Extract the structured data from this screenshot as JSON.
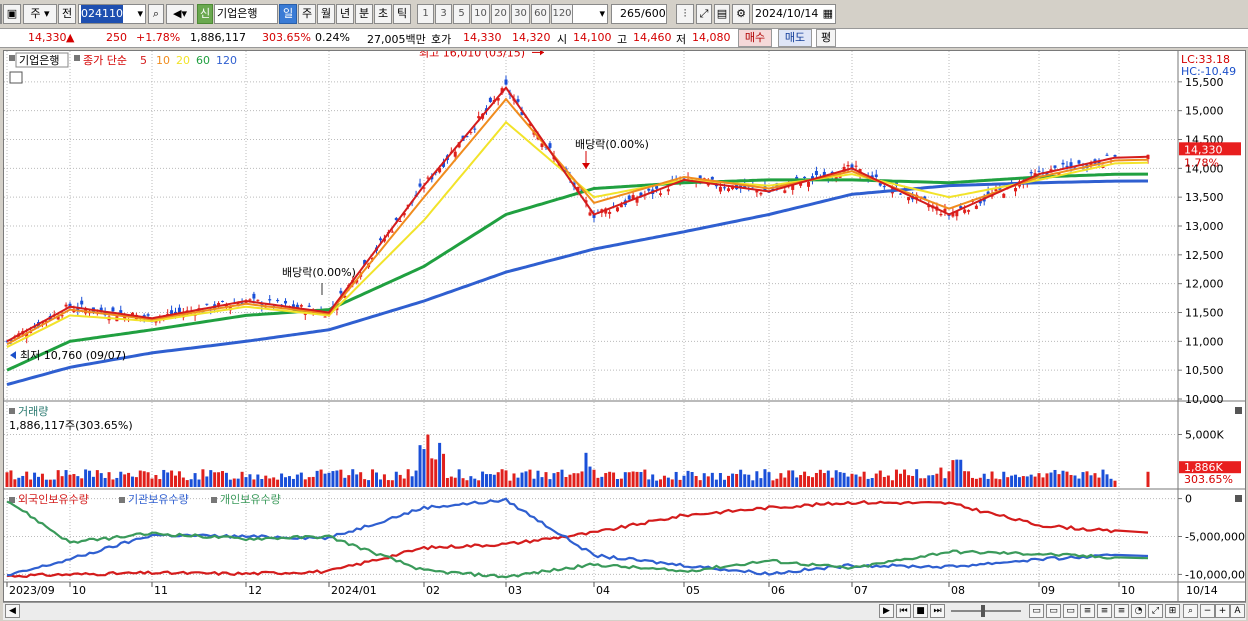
{
  "toolbar": {
    "market": "주",
    "prev": "전",
    "code": "024110",
    "name": "기업은행",
    "credit_badge": "신",
    "periods": [
      "일",
      "주",
      "월",
      "년",
      "분",
      "초",
      "틱"
    ],
    "period_selected": "일",
    "intervals": [
      "1",
      "3",
      "5",
      "10",
      "20",
      "30",
      "60",
      "120"
    ],
    "count_value": "265",
    "count_total": "/600",
    "date": "2024/10/14"
  },
  "quote": {
    "price": "14,330",
    "change_arrow": "▲",
    "change": "250",
    "change_pct": "+1.78%",
    "volume": "1,886,117",
    "volume_ratio": "303.65%",
    "turnover_pct": "0.24%",
    "amount": "27,005백만",
    "bid_label": "호가",
    "ask_price": "14,330",
    "bid_price": "14,320",
    "open_label": "시",
    "open": "14,100",
    "high_label": "고",
    "high": "14,460",
    "low_label": "저",
    "low": "14,080",
    "buy_button": "매수",
    "sell_button": "매도",
    "avg_button": "평"
  },
  "price_panel": {
    "stock_tag": "기업은행",
    "ma_label": "종가 단순",
    "ma_periods": [
      "5",
      "10",
      "20",
      "60",
      "120"
    ],
    "ma_colors": [
      "#d41c1c",
      "#f08c1e",
      "#f2e32a",
      "#20a040",
      "#2f5fd0"
    ],
    "lc_label": "LC:33.18",
    "hc_label": "HC:-10.49",
    "high_annotation": "최고 16,010 (03/15)",
    "low_annotation": "최저 10,760 (09/07)",
    "dividend_annotation_1": "배당락(0.00%)",
    "dividend_annotation_2": "배당락(0.00%)",
    "current_price_tag": "14,330",
    "current_change_tag": "1.78%",
    "y_ticks": [
      "15,500",
      "15,000",
      "14,500",
      "14,000",
      "13,500",
      "13,000",
      "12,500",
      "12,000",
      "11,500",
      "11,000",
      "10,500",
      "10,000"
    ]
  },
  "volume_panel": {
    "title": "거래량",
    "value": "1,886,117주(303.65%)",
    "y_tick": "5,000K",
    "current_tag": "1,886K",
    "current_pct": "303.65%"
  },
  "holding_panel": {
    "series_labels": [
      "외국인보유수량",
      "기관보유수량",
      "개인보유수량"
    ],
    "series_colors": [
      "#d41c1c",
      "#2f5fd0",
      "#3a9a5a"
    ],
    "y_ticks": [
      "0",
      "-5,000,000",
      "-10,000,000"
    ]
  },
  "x_axis": {
    "labels": [
      "2023/09",
      "10",
      "11",
      "12",
      "2024/01",
      "02",
      "03",
      "04",
      "05",
      "06",
      "07",
      "08",
      "09",
      "10"
    ],
    "end_label": "10/14"
  },
  "chart_data": {
    "type": "line",
    "x": [
      "2023/09",
      "10",
      "11",
      "12",
      "2024/01",
      "02",
      "03",
      "04",
      "05",
      "06",
      "07",
      "08",
      "09",
      "10"
    ],
    "series": [
      {
        "name": "5",
        "values": [
          11000,
          11600,
          11400,
          11700,
          11500,
          13700,
          15400,
          13200,
          13800,
          13600,
          14000,
          13200,
          13900,
          14200
        ]
      },
      {
        "name": "10",
        "values": [
          10950,
          11550,
          11380,
          11650,
          11480,
          13500,
          15200,
          13400,
          13850,
          13650,
          13950,
          13300,
          13850,
          14150
        ]
      },
      {
        "name": "20",
        "values": [
          10900,
          11450,
          11350,
          11600,
          11450,
          13100,
          14800,
          13500,
          13800,
          13700,
          13900,
          13500,
          13800,
          14100
        ]
      },
      {
        "name": "60",
        "values": [
          10500,
          11000,
          11200,
          11450,
          11550,
          12300,
          13200,
          13650,
          13750,
          13800,
          13800,
          13750,
          13850,
          13900
        ]
      },
      {
        "name": "120",
        "values": [
          10250,
          10550,
          10800,
          11000,
          11200,
          11700,
          12200,
          12600,
          12900,
          13200,
          13550,
          13700,
          13750,
          13780
        ]
      }
    ],
    "ylim": [
      10000,
      16000
    ],
    "volume_ylim": [
      0,
      8000
    ],
    "holding_ylim": [
      -11000000,
      1000000
    ]
  }
}
